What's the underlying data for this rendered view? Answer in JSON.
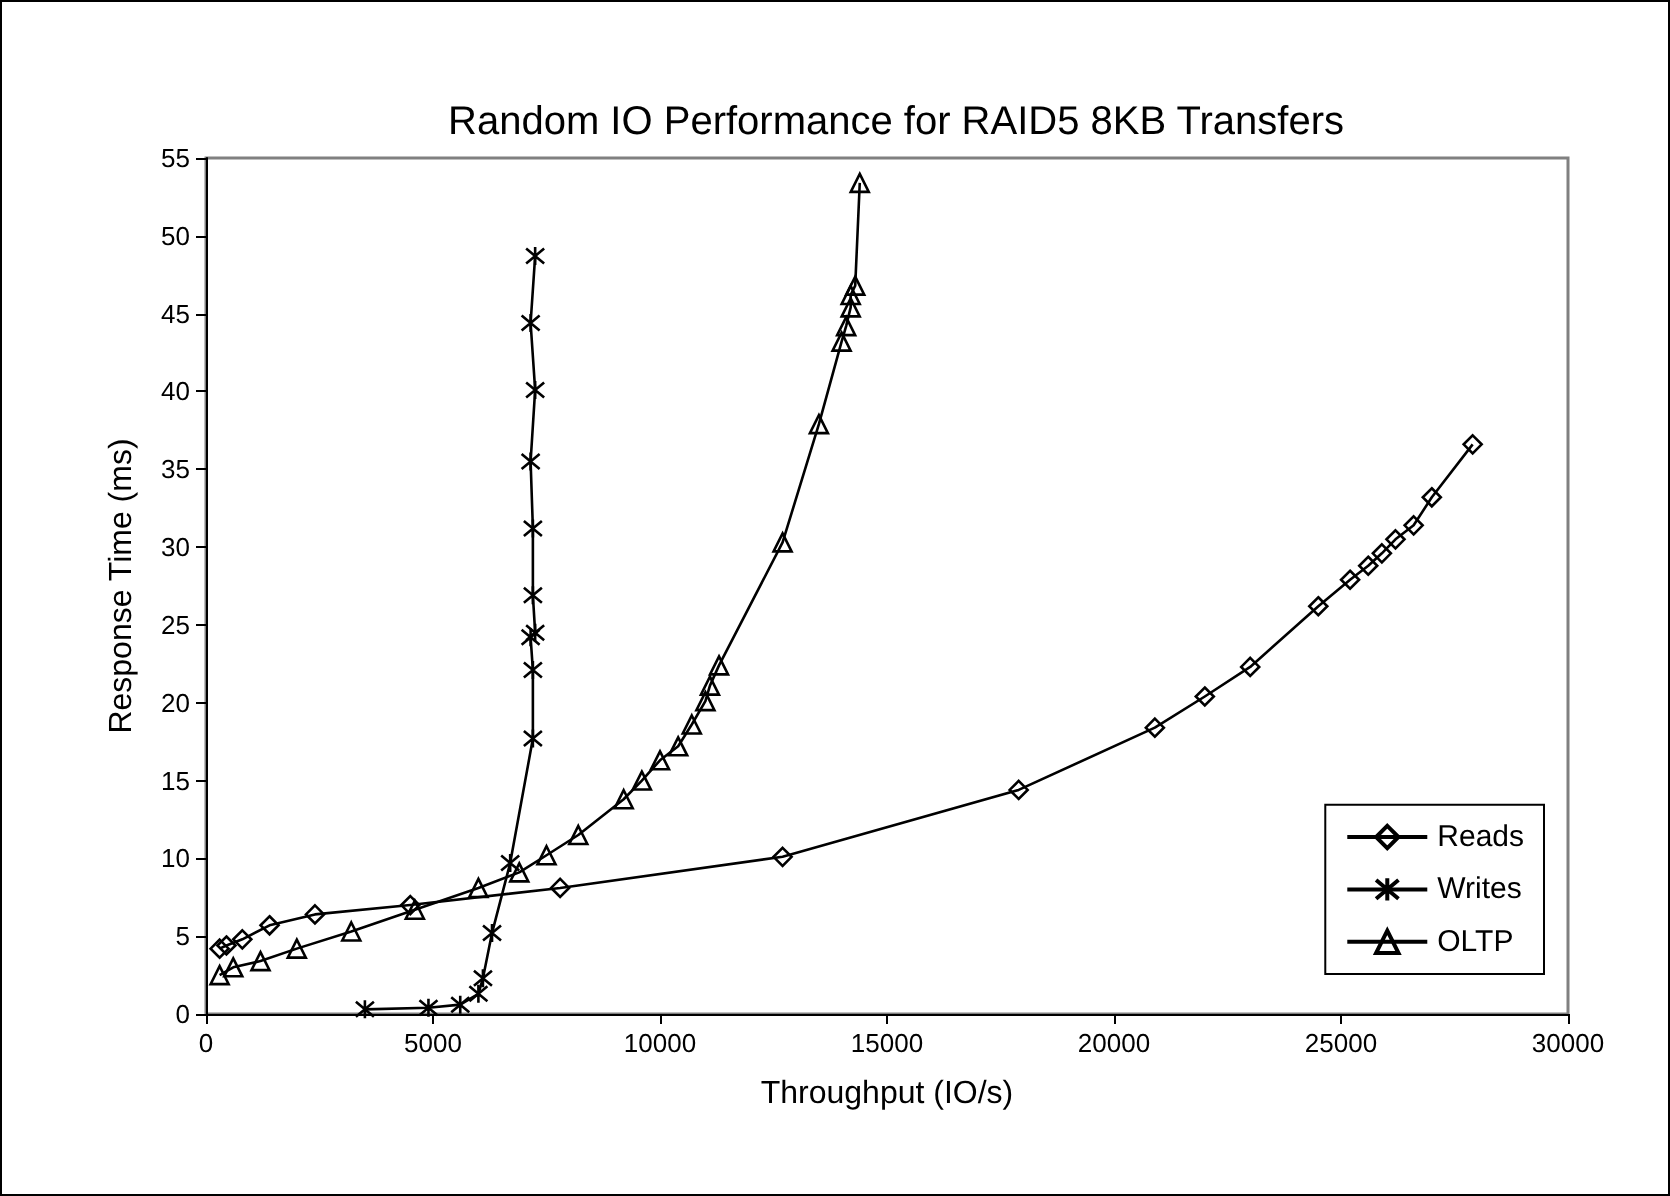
{
  "chart_data": {
    "type": "line",
    "title": "Random IO Performance for RAID5 8KB Transfers",
    "xlabel": "Throughput (IO/s)",
    "ylabel": "Response Time (ms)",
    "xlim": [
      0,
      30000
    ],
    "xticks": [
      0,
      5000,
      10000,
      15000,
      20000,
      25000,
      30000
    ],
    "ylim": [
      0,
      55
    ],
    "yticks": [
      0,
      5,
      10,
      15,
      20,
      25,
      30,
      35,
      40,
      45,
      50,
      55
    ],
    "grid": false,
    "legend": "bottom right",
    "series": [
      {
        "name": "Reads",
        "color": "#000000",
        "marker": "diamond",
        "x": [
          300,
          450,
          800,
          1400,
          2400,
          4500,
          7800,
          12700,
          17900,
          20900,
          22000,
          23000,
          24500,
          25200,
          25600,
          25900,
          26200,
          26600,
          27000,
          27900
        ],
        "values": [
          4.2,
          4.4,
          4.8,
          5.7,
          6.4,
          7.0,
          8.1,
          10.1,
          14.4,
          18.4,
          20.4,
          22.3,
          26.2,
          27.9,
          28.8,
          29.6,
          30.5,
          31.4,
          33.2,
          36.6
        ]
      },
      {
        "name": "Writes",
        "color": "#000000",
        "marker": "cross",
        "x": [
          3500,
          4900,
          5600,
          6000,
          6100,
          6300,
          6700,
          7200,
          7200,
          7150,
          7250,
          7200,
          7200,
          7150,
          7250,
          7150,
          7250
        ],
        "values": [
          0.3,
          0.4,
          0.6,
          1.3,
          2.3,
          5.2,
          9.7,
          17.7,
          22.1,
          24.2,
          24.5,
          26.9,
          31.2,
          35.5,
          40.1,
          44.4,
          48.7
        ]
      },
      {
        "name": "OLTP",
        "color": "#000000",
        "marker": "triangle",
        "x": [
          300,
          600,
          1200,
          2000,
          3200,
          4600,
          6000,
          6900,
          7500,
          8200,
          9200,
          9600,
          10000,
          10400,
          10700,
          11000,
          11100,
          11300,
          12700,
          13500,
          14000,
          14100,
          14200,
          14200,
          14300,
          14400
        ],
        "values": [
          2.5,
          3.0,
          3.4,
          4.2,
          5.3,
          6.7,
          8.1,
          9.1,
          10.2,
          11.5,
          13.8,
          15.0,
          16.3,
          17.2,
          18.6,
          20.1,
          21.1,
          22.4,
          30.3,
          37.9,
          43.2,
          44.2,
          45.4,
          46.2,
          46.8,
          53.4
        ]
      }
    ]
  }
}
